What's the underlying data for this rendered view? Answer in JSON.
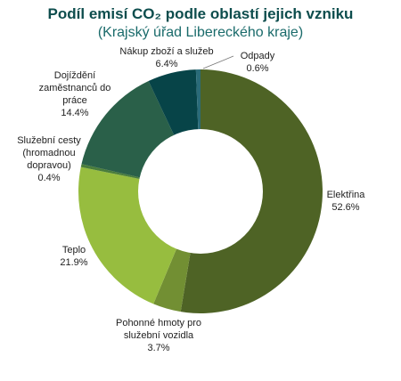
{
  "chart_data": {
    "type": "pie",
    "donut": true,
    "title": "Podíl emisí CO₂ podle oblastí jejich vzniku",
    "subtitle": "(Krajský úřad Libereckého kraje)",
    "title_color": "#0d4d4d",
    "subtitle_color": "#1a6b6b",
    "start_angle_deg": 0,
    "direction": "clockwise",
    "slices": [
      {
        "label_lines": [
          "Elektřina"
        ],
        "value_text": "52.6%",
        "value": 52.6,
        "color": "#4e6325"
      },
      {
        "label_lines": [
          "Pohonné hmoty pro",
          "služební vozidla"
        ],
        "value_text": "3.7%",
        "value": 3.7,
        "color": "#728f33"
      },
      {
        "label_lines": [
          "Teplo"
        ],
        "value_text": "21.9%",
        "value": 21.9,
        "color": "#97bd3f"
      },
      {
        "label_lines": [
          "Služební cesty",
          "(hromadnou",
          "dopravou)"
        ],
        "value_text": "0.4%",
        "value": 0.4,
        "color": "#4a7d3b"
      },
      {
        "label_lines": [
          "Dojíždění",
          "zaměstnanců do",
          "práce"
        ],
        "value_text": "14.4%",
        "value": 14.4,
        "color": "#2a6049"
      },
      {
        "label_lines": [
          "Nákup zboží a služeb"
        ],
        "value_text": "6.4%",
        "value": 6.4,
        "color": "#074448"
      },
      {
        "label_lines": [
          "Odpady"
        ],
        "value_text": "0.6%",
        "value": 0.6,
        "color": "#2a6b78"
      }
    ]
  }
}
